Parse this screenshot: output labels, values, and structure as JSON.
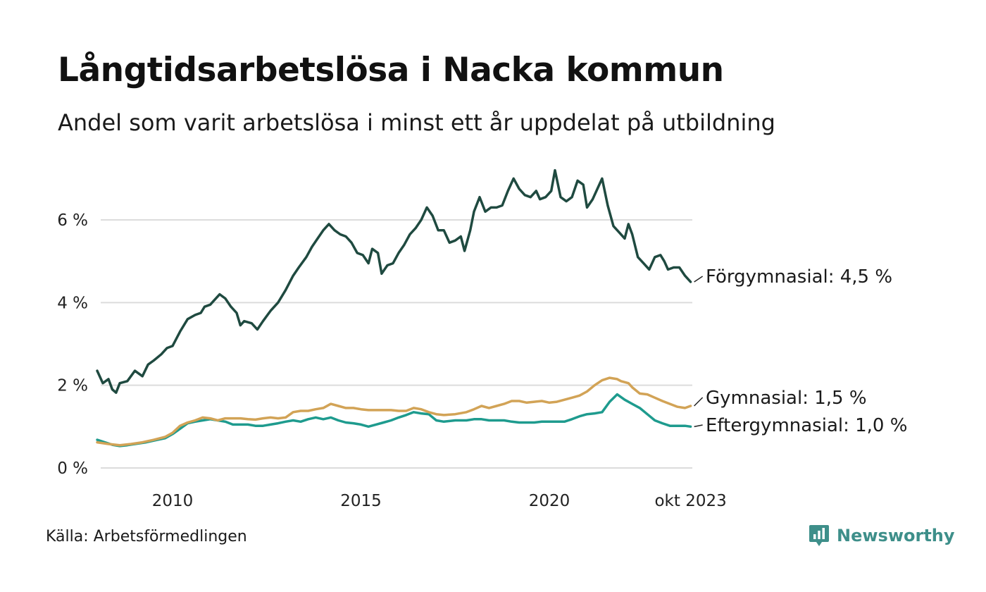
{
  "title": "Långtidsarbetslösa i Nacka kommun",
  "subtitle": "Andel som varit arbetslösa i minst ett år uppdelat på utbildning",
  "source": "Källa: Arbetsförmedlingen",
  "brand": {
    "name": "Newsworthy",
    "logo_icon": "bar-chart-speech-bubble-icon",
    "color": "#3e8f8a"
  },
  "chart_data": {
    "type": "line",
    "title": "Långtidsarbetslösa i Nacka kommun",
    "xlabel": "",
    "ylabel": "",
    "x_range": [
      2008.0,
      2023.75
    ],
    "ylim": [
      0,
      7.5
    ],
    "y_ticks": [
      {
        "value": 0,
        "label": "0 %"
      },
      {
        "value": 2,
        "label": "2 %"
      },
      {
        "value": 4,
        "label": "4 %"
      },
      {
        "value": 6,
        "label": "6 %"
      }
    ],
    "x_ticks": [
      {
        "value": 2010,
        "label": "2010"
      },
      {
        "value": 2015,
        "label": "2015"
      },
      {
        "value": 2020,
        "label": "2020"
      },
      {
        "value": 2023.75,
        "label": "okt 2023"
      }
    ],
    "grid": true,
    "legend": "direct labels at line ends (right)",
    "series": [
      {
        "name": "Förgymnasial",
        "end_label": "Förgymnasial: 4,5 %",
        "color": "#1f4a40",
        "points": [
          [
            2008.0,
            2.35
          ],
          [
            2008.15,
            2.05
          ],
          [
            2008.3,
            2.15
          ],
          [
            2008.4,
            1.9
          ],
          [
            2008.5,
            1.82
          ],
          [
            2008.6,
            2.05
          ],
          [
            2008.8,
            2.1
          ],
          [
            2009.0,
            2.35
          ],
          [
            2009.2,
            2.22
          ],
          [
            2009.35,
            2.5
          ],
          [
            2009.5,
            2.6
          ],
          [
            2009.7,
            2.75
          ],
          [
            2009.85,
            2.9
          ],
          [
            2010.0,
            2.95
          ],
          [
            2010.2,
            3.3
          ],
          [
            2010.4,
            3.6
          ],
          [
            2010.6,
            3.7
          ],
          [
            2010.75,
            3.75
          ],
          [
            2010.85,
            3.9
          ],
          [
            2011.0,
            3.95
          ],
          [
            2011.1,
            4.05
          ],
          [
            2011.25,
            4.2
          ],
          [
            2011.4,
            4.1
          ],
          [
            2011.55,
            3.9
          ],
          [
            2011.7,
            3.75
          ],
          [
            2011.8,
            3.45
          ],
          [
            2011.9,
            3.55
          ],
          [
            2012.1,
            3.5
          ],
          [
            2012.25,
            3.35
          ],
          [
            2012.4,
            3.55
          ],
          [
            2012.6,
            3.8
          ],
          [
            2012.8,
            4.0
          ],
          [
            2013.0,
            4.3
          ],
          [
            2013.2,
            4.65
          ],
          [
            2013.35,
            4.85
          ],
          [
            2013.55,
            5.1
          ],
          [
            2013.7,
            5.35
          ],
          [
            2013.85,
            5.55
          ],
          [
            2014.0,
            5.75
          ],
          [
            2014.15,
            5.9
          ],
          [
            2014.3,
            5.75
          ],
          [
            2014.45,
            5.65
          ],
          [
            2014.6,
            5.6
          ],
          [
            2014.75,
            5.45
          ],
          [
            2014.9,
            5.2
          ],
          [
            2015.05,
            5.15
          ],
          [
            2015.2,
            4.95
          ],
          [
            2015.3,
            5.3
          ],
          [
            2015.45,
            5.2
          ],
          [
            2015.55,
            4.7
          ],
          [
            2015.7,
            4.9
          ],
          [
            2015.85,
            4.95
          ],
          [
            2016.0,
            5.2
          ],
          [
            2016.15,
            5.4
          ],
          [
            2016.3,
            5.65
          ],
          [
            2016.45,
            5.8
          ],
          [
            2016.6,
            6.0
          ],
          [
            2016.75,
            6.3
          ],
          [
            2016.9,
            6.1
          ],
          [
            2017.05,
            5.75
          ],
          [
            2017.2,
            5.75
          ],
          [
            2017.35,
            5.45
          ],
          [
            2017.5,
            5.5
          ],
          [
            2017.65,
            5.6
          ],
          [
            2017.75,
            5.25
          ],
          [
            2017.9,
            5.75
          ],
          [
            2018.0,
            6.2
          ],
          [
            2018.15,
            6.55
          ],
          [
            2018.3,
            6.2
          ],
          [
            2018.45,
            6.3
          ],
          [
            2018.6,
            6.3
          ],
          [
            2018.75,
            6.35
          ],
          [
            2018.9,
            6.7
          ],
          [
            2019.05,
            7.0
          ],
          [
            2019.2,
            6.75
          ],
          [
            2019.35,
            6.6
          ],
          [
            2019.5,
            6.55
          ],
          [
            2019.65,
            6.7
          ],
          [
            2019.75,
            6.5
          ],
          [
            2019.9,
            6.55
          ],
          [
            2020.05,
            6.7
          ],
          [
            2020.15,
            7.2
          ],
          [
            2020.3,
            6.55
          ],
          [
            2020.45,
            6.45
          ],
          [
            2020.6,
            6.55
          ],
          [
            2020.75,
            6.95
          ],
          [
            2020.9,
            6.85
          ],
          [
            2021.0,
            6.3
          ],
          [
            2021.15,
            6.5
          ],
          [
            2021.3,
            6.8
          ],
          [
            2021.4,
            7.0
          ],
          [
            2021.55,
            6.35
          ],
          [
            2021.7,
            5.85
          ],
          [
            2021.85,
            5.7
          ],
          [
            2022.0,
            5.55
          ],
          [
            2022.1,
            5.9
          ],
          [
            2022.2,
            5.65
          ],
          [
            2022.35,
            5.1
          ],
          [
            2022.5,
            4.95
          ],
          [
            2022.65,
            4.8
          ],
          [
            2022.8,
            5.1
          ],
          [
            2022.95,
            5.15
          ],
          [
            2023.05,
            5.0
          ],
          [
            2023.15,
            4.8
          ],
          [
            2023.3,
            4.85
          ],
          [
            2023.45,
            4.85
          ],
          [
            2023.6,
            4.65
          ],
          [
            2023.75,
            4.5
          ]
        ]
      },
      {
        "name": "Gymnasial",
        "end_label": "Gymnasial: 1,5 %",
        "color": "#d2a356",
        "points": [
          [
            2008.0,
            0.62
          ],
          [
            2008.3,
            0.58
          ],
          [
            2008.6,
            0.55
          ],
          [
            2008.9,
            0.58
          ],
          [
            2009.2,
            0.62
          ],
          [
            2009.5,
            0.68
          ],
          [
            2009.8,
            0.75
          ],
          [
            2010.0,
            0.85
          ],
          [
            2010.2,
            1.02
          ],
          [
            2010.4,
            1.1
          ],
          [
            2010.6,
            1.15
          ],
          [
            2010.8,
            1.22
          ],
          [
            2011.0,
            1.2
          ],
          [
            2011.2,
            1.15
          ],
          [
            2011.4,
            1.2
          ],
          [
            2011.6,
            1.2
          ],
          [
            2011.8,
            1.2
          ],
          [
            2012.0,
            1.18
          ],
          [
            2012.2,
            1.17
          ],
          [
            2012.4,
            1.2
          ],
          [
            2012.6,
            1.22
          ],
          [
            2012.8,
            1.2
          ],
          [
            2013.0,
            1.22
          ],
          [
            2013.2,
            1.35
          ],
          [
            2013.4,
            1.38
          ],
          [
            2013.6,
            1.38
          ],
          [
            2013.8,
            1.42
          ],
          [
            2014.0,
            1.45
          ],
          [
            2014.2,
            1.55
          ],
          [
            2014.4,
            1.5
          ],
          [
            2014.6,
            1.45
          ],
          [
            2014.8,
            1.45
          ],
          [
            2015.0,
            1.42
          ],
          [
            2015.2,
            1.4
          ],
          [
            2015.5,
            1.4
          ],
          [
            2015.8,
            1.4
          ],
          [
            2016.0,
            1.38
          ],
          [
            2016.2,
            1.38
          ],
          [
            2016.4,
            1.45
          ],
          [
            2016.6,
            1.42
          ],
          [
            2016.8,
            1.35
          ],
          [
            2017.0,
            1.3
          ],
          [
            2017.2,
            1.28
          ],
          [
            2017.5,
            1.3
          ],
          [
            2017.8,
            1.35
          ],
          [
            2018.0,
            1.42
          ],
          [
            2018.2,
            1.5
          ],
          [
            2018.4,
            1.45
          ],
          [
            2018.6,
            1.5
          ],
          [
            2018.8,
            1.55
          ],
          [
            2019.0,
            1.62
          ],
          [
            2019.2,
            1.62
          ],
          [
            2019.4,
            1.58
          ],
          [
            2019.6,
            1.6
          ],
          [
            2019.8,
            1.62
          ],
          [
            2020.0,
            1.58
          ],
          [
            2020.2,
            1.6
          ],
          [
            2020.4,
            1.65
          ],
          [
            2020.6,
            1.7
          ],
          [
            2020.8,
            1.75
          ],
          [
            2021.0,
            1.85
          ],
          [
            2021.2,
            2.0
          ],
          [
            2021.4,
            2.12
          ],
          [
            2021.6,
            2.18
          ],
          [
            2021.8,
            2.15
          ],
          [
            2021.9,
            2.1
          ],
          [
            2022.1,
            2.05
          ],
          [
            2022.2,
            1.95
          ],
          [
            2022.4,
            1.8
          ],
          [
            2022.6,
            1.78
          ],
          [
            2022.8,
            1.7
          ],
          [
            2023.0,
            1.62
          ],
          [
            2023.2,
            1.55
          ],
          [
            2023.4,
            1.48
          ],
          [
            2023.6,
            1.45
          ],
          [
            2023.75,
            1.5
          ]
        ]
      },
      {
        "name": "Eftergymnasial",
        "end_label": "Eftergymnasial: 1,0 %",
        "color": "#1e9b8e",
        "points": [
          [
            2008.0,
            0.68
          ],
          [
            2008.2,
            0.62
          ],
          [
            2008.4,
            0.56
          ],
          [
            2008.6,
            0.53
          ],
          [
            2008.8,
            0.55
          ],
          [
            2009.0,
            0.58
          ],
          [
            2009.3,
            0.62
          ],
          [
            2009.6,
            0.68
          ],
          [
            2009.8,
            0.72
          ],
          [
            2010.0,
            0.82
          ],
          [
            2010.2,
            0.95
          ],
          [
            2010.4,
            1.08
          ],
          [
            2010.6,
            1.12
          ],
          [
            2010.8,
            1.15
          ],
          [
            2011.0,
            1.18
          ],
          [
            2011.2,
            1.15
          ],
          [
            2011.4,
            1.12
          ],
          [
            2011.6,
            1.05
          ],
          [
            2011.8,
            1.05
          ],
          [
            2012.0,
            1.05
          ],
          [
            2012.2,
            1.02
          ],
          [
            2012.4,
            1.02
          ],
          [
            2012.6,
            1.05
          ],
          [
            2012.8,
            1.08
          ],
          [
            2013.0,
            1.12
          ],
          [
            2013.2,
            1.15
          ],
          [
            2013.4,
            1.12
          ],
          [
            2013.6,
            1.18
          ],
          [
            2013.8,
            1.22
          ],
          [
            2014.0,
            1.18
          ],
          [
            2014.2,
            1.22
          ],
          [
            2014.4,
            1.15
          ],
          [
            2014.6,
            1.1
          ],
          [
            2014.8,
            1.08
          ],
          [
            2015.0,
            1.05
          ],
          [
            2015.2,
            1.0
          ],
          [
            2015.4,
            1.05
          ],
          [
            2015.6,
            1.1
          ],
          [
            2015.8,
            1.15
          ],
          [
            2016.0,
            1.22
          ],
          [
            2016.2,
            1.28
          ],
          [
            2016.4,
            1.35
          ],
          [
            2016.6,
            1.32
          ],
          [
            2016.8,
            1.3
          ],
          [
            2017.0,
            1.15
          ],
          [
            2017.2,
            1.12
          ],
          [
            2017.5,
            1.15
          ],
          [
            2017.8,
            1.15
          ],
          [
            2018.0,
            1.18
          ],
          [
            2018.2,
            1.18
          ],
          [
            2018.4,
            1.15
          ],
          [
            2018.6,
            1.15
          ],
          [
            2018.8,
            1.15
          ],
          [
            2019.0,
            1.12
          ],
          [
            2019.2,
            1.1
          ],
          [
            2019.4,
            1.1
          ],
          [
            2019.6,
            1.1
          ],
          [
            2019.8,
            1.12
          ],
          [
            2020.0,
            1.12
          ],
          [
            2020.2,
            1.12
          ],
          [
            2020.4,
            1.12
          ],
          [
            2020.6,
            1.18
          ],
          [
            2020.8,
            1.25
          ],
          [
            2021.0,
            1.3
          ],
          [
            2021.2,
            1.32
          ],
          [
            2021.4,
            1.35
          ],
          [
            2021.6,
            1.6
          ],
          [
            2021.8,
            1.78
          ],
          [
            2022.0,
            1.65
          ],
          [
            2022.2,
            1.55
          ],
          [
            2022.4,
            1.45
          ],
          [
            2022.6,
            1.3
          ],
          [
            2022.8,
            1.15
          ],
          [
            2023.0,
            1.08
          ],
          [
            2023.2,
            1.02
          ],
          [
            2023.4,
            1.02
          ],
          [
            2023.6,
            1.02
          ],
          [
            2023.75,
            1.0
          ]
        ]
      }
    ]
  }
}
